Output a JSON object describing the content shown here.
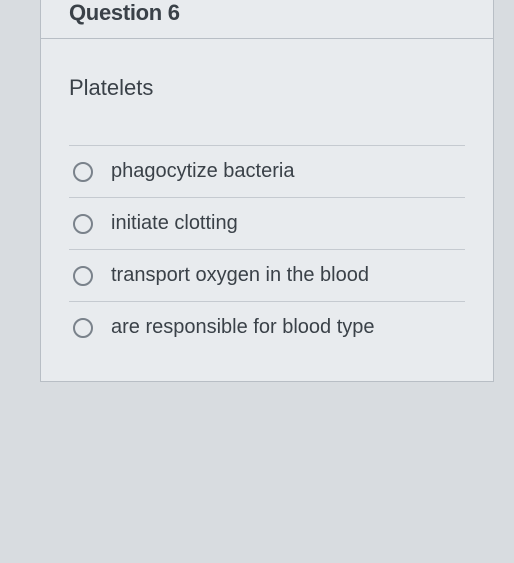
{
  "quiz": {
    "header": "Question 6",
    "prompt": "Platelets",
    "options": [
      {
        "label": "phagocytize bacteria"
      },
      {
        "label": "initiate clotting"
      },
      {
        "label": "transport oxygen in the blood"
      },
      {
        "label": "are responsible for blood type"
      }
    ]
  }
}
